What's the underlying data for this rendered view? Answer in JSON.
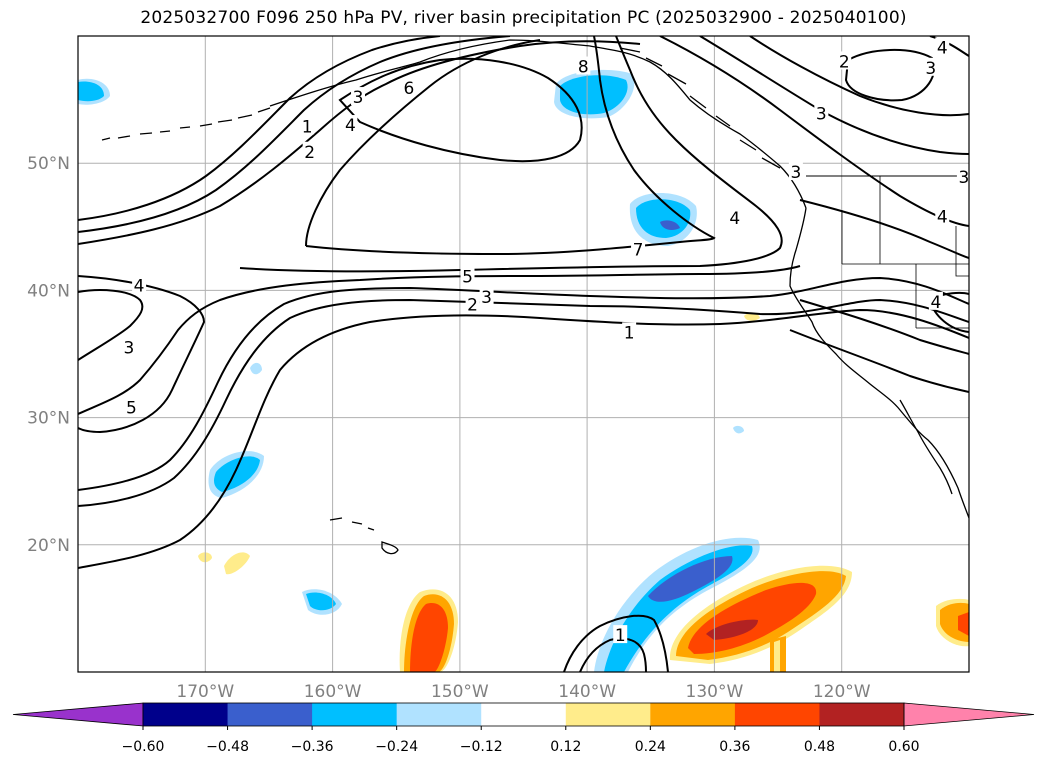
{
  "title": "2025032700 F096 250 hPa PV, river basin precipitation PC (2025032900 - 2025040100)",
  "map": {
    "lon_range": [
      -180,
      -110
    ],
    "lat_range": [
      10,
      60
    ],
    "lon_ticks": [
      {
        "lon": -170,
        "label": "170°W"
      },
      {
        "lon": -160,
        "label": "160°W"
      },
      {
        "lon": -150,
        "label": "150°W"
      },
      {
        "lon": -140,
        "label": "140°W"
      },
      {
        "lon": -130,
        "label": "130°W"
      },
      {
        "lon": -120,
        "label": "120°W"
      }
    ],
    "lat_ticks": [
      {
        "lat": 50,
        "label": "50°N"
      },
      {
        "lat": 40,
        "label": "40°N"
      },
      {
        "lat": 30,
        "label": "30°N"
      },
      {
        "lat": 20,
        "label": "20°N"
      }
    ],
    "contour_labels": [
      {
        "lon": -162.0,
        "lat": 52.9,
        "text": "1"
      },
      {
        "lon": -161.8,
        "lat": 50.9,
        "text": "2"
      },
      {
        "lon": -158.0,
        "lat": 55.2,
        "text": "3"
      },
      {
        "lon": -158.6,
        "lat": 53.0,
        "text": "4"
      },
      {
        "lon": -154.0,
        "lat": 55.9,
        "text": "6"
      },
      {
        "lon": -140.3,
        "lat": 57.6,
        "text": "8"
      },
      {
        "lon": -136.0,
        "lat": 43.2,
        "text": "7"
      },
      {
        "lon": -149.4,
        "lat": 41.1,
        "text": "5"
      },
      {
        "lon": -147.9,
        "lat": 39.5,
        "text": "3"
      },
      {
        "lon": -149.0,
        "lat": 38.9,
        "text": "2"
      },
      {
        "lon": -136.7,
        "lat": 36.7,
        "text": "1"
      },
      {
        "lon": -175.2,
        "lat": 40.4,
        "text": "4"
      },
      {
        "lon": -176.0,
        "lat": 35.5,
        "text": "3"
      },
      {
        "lon": -175.8,
        "lat": 30.8,
        "text": "5"
      },
      {
        "lon": -137.4,
        "lat": 12.9,
        "text": "1"
      },
      {
        "lon": -128.4,
        "lat": 45.7,
        "text": "4"
      },
      {
        "lon": -123.6,
        "lat": 49.3,
        "text": "3"
      },
      {
        "lon": -121.6,
        "lat": 53.9,
        "text": "3"
      },
      {
        "lon": -119.8,
        "lat": 58.0,
        "text": "2"
      },
      {
        "lon": -113.0,
        "lat": 57.5,
        "text": "3"
      },
      {
        "lon": -112.1,
        "lat": 59.1,
        "text": "4"
      },
      {
        "lon": -112.1,
        "lat": 45.8,
        "text": "4"
      },
      {
        "lon": -110.4,
        "lat": 48.9,
        "text": "3"
      },
      {
        "lon": -112.6,
        "lat": 39.1,
        "text": "4"
      }
    ]
  },
  "colorbar": {
    "levels": [
      "−0.60",
      "−0.48",
      "−0.36",
      "−0.24",
      "−0.12",
      "0.12",
      "0.24",
      "0.36",
      "0.48",
      "0.60"
    ],
    "colors": [
      "#9932cc",
      "#00008b",
      "#3a5fcd",
      "#00bfff",
      "#b0e2ff",
      "#ffffff",
      "#ffec8b",
      "#ffa500",
      "#ff4500",
      "#b22222",
      "#ff82ab"
    ]
  }
}
